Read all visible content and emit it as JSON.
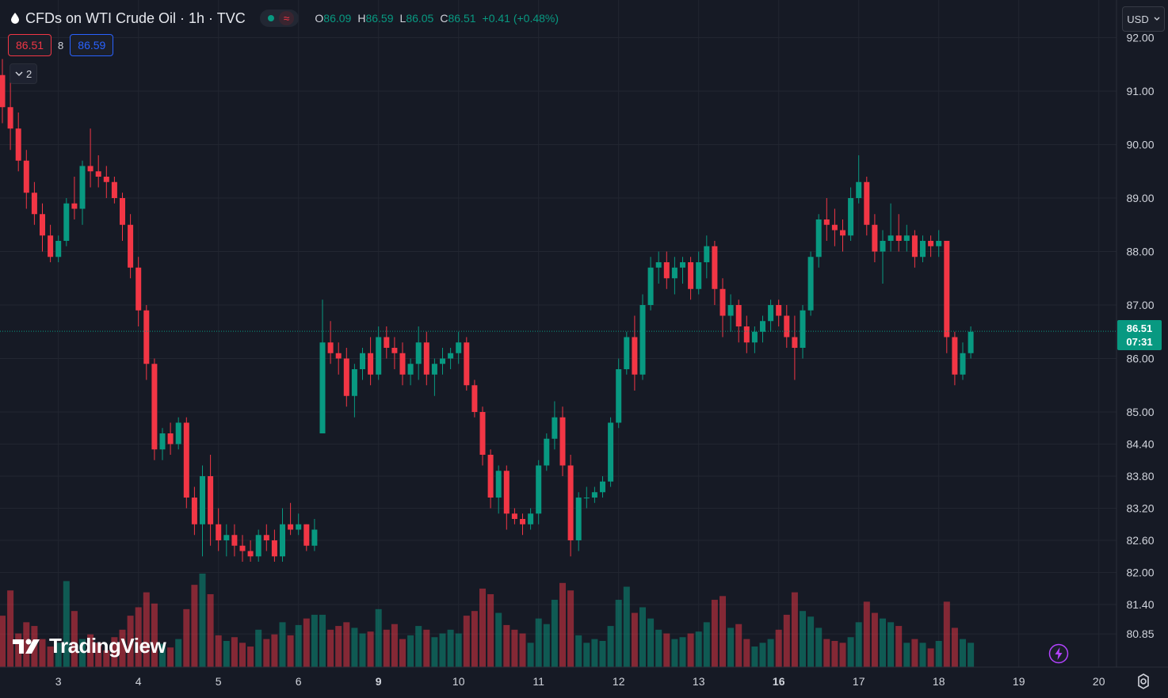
{
  "header": {
    "title": "CFDs on WTI Crude Oil · 1h · TVC",
    "ohlc": {
      "o_label": "O",
      "o": "86.09",
      "h_label": "H",
      "h": "86.59",
      "l_label": "L",
      "l": "86.05",
      "c_label": "C",
      "c": "86.51",
      "change": "+0.41 (+0.48%)"
    },
    "status_symbol": "≈"
  },
  "quote": {
    "sell": "86.51",
    "spread": "8",
    "buy": "86.59"
  },
  "collapse": {
    "count": "2"
  },
  "currency": "USD",
  "last_price": {
    "price": "86.51",
    "countdown": "07:31"
  },
  "watermark": "TradingView",
  "colors": {
    "bg": "#161a25",
    "up": "#089981",
    "down": "#f23645",
    "grid": "#222631",
    "text": "#d1d4dc"
  },
  "icons": [
    "drop-icon",
    "chevron-down-icon",
    "bolt-icon",
    "gear-icon",
    "tradingview-logo-icon"
  ],
  "chart_data": {
    "type": "candlestick",
    "instrument": "CFDs on WTI Crude Oil",
    "interval": "1h",
    "y_ticks": [
      "92.00",
      "91.00",
      "90.00",
      "89.00",
      "88.00",
      "87.00",
      "86.00",
      "85.00",
      "84.40",
      "83.80",
      "83.20",
      "82.60",
      "82.00",
      "81.40",
      "80.85"
    ],
    "x_ticks": [
      "3",
      "4",
      "5",
      "6",
      "9",
      "10",
      "11",
      "12",
      "13",
      "16",
      "17",
      "18",
      "19",
      "20"
    ],
    "x_tick_index": [
      7,
      17,
      27,
      37,
      47,
      57,
      67,
      77,
      87,
      97,
      107,
      117,
      127,
      137
    ],
    "ohlc": [
      [
        91.3,
        91.6,
        90.4,
        90.7
      ],
      [
        90.7,
        91.2,
        89.9,
        90.3
      ],
      [
        90.3,
        90.6,
        89.5,
        89.7
      ],
      [
        89.7,
        89.9,
        88.8,
        89.1
      ],
      [
        89.1,
        89.3,
        88.5,
        88.7
      ],
      [
        88.7,
        88.9,
        88.0,
        88.3
      ],
      [
        88.3,
        88.5,
        87.8,
        87.9
      ],
      [
        87.9,
        88.3,
        87.8,
        88.2
      ],
      [
        88.2,
        89.0,
        88.1,
        88.9
      ],
      [
        88.9,
        89.4,
        88.6,
        88.8
      ],
      [
        88.8,
        89.7,
        88.5,
        89.6
      ],
      [
        89.6,
        90.3,
        89.2,
        89.5
      ],
      [
        89.5,
        89.8,
        89.2,
        89.4
      ],
      [
        89.4,
        89.6,
        89.0,
        89.3
      ],
      [
        89.3,
        89.4,
        88.9,
        89.0
      ],
      [
        89.0,
        89.1,
        88.2,
        88.5
      ],
      [
        88.5,
        88.7,
        87.5,
        87.7
      ],
      [
        87.7,
        87.9,
        86.6,
        86.9
      ],
      [
        86.9,
        87.0,
        85.6,
        85.9
      ],
      [
        85.9,
        86.0,
        84.1,
        84.3
      ],
      [
        84.3,
        84.7,
        84.1,
        84.6
      ],
      [
        84.6,
        84.8,
        84.2,
        84.4
      ],
      [
        84.4,
        84.9,
        84.3,
        84.8
      ],
      [
        84.8,
        84.9,
        83.2,
        83.4
      ],
      [
        83.4,
        83.6,
        82.7,
        82.9
      ],
      [
        82.9,
        84.0,
        82.3,
        83.8
      ],
      [
        83.8,
        84.2,
        82.5,
        82.9
      ],
      [
        82.9,
        83.2,
        82.4,
        82.6
      ],
      [
        82.6,
        82.9,
        82.3,
        82.7
      ],
      [
        82.7,
        82.9,
        82.3,
        82.5
      ],
      [
        82.5,
        82.7,
        82.2,
        82.4
      ],
      [
        82.4,
        82.6,
        82.2,
        82.3
      ],
      [
        82.3,
        82.8,
        82.2,
        82.7
      ],
      [
        82.7,
        82.9,
        82.4,
        82.6
      ],
      [
        82.6,
        82.8,
        82.2,
        82.3
      ],
      [
        82.3,
        83.2,
        82.2,
        82.9
      ],
      [
        82.9,
        83.3,
        82.7,
        82.8
      ],
      [
        82.8,
        83.1,
        82.7,
        82.9
      ],
      [
        82.9,
        82.9,
        82.4,
        82.5
      ],
      [
        82.5,
        83.0,
        82.4,
        82.8
      ],
      [
        84.6,
        87.1,
        84.6,
        86.3
      ],
      [
        86.3,
        86.7,
        85.9,
        86.1
      ],
      [
        86.1,
        86.3,
        85.7,
        86.0
      ],
      [
        86.0,
        86.2,
        85.1,
        85.3
      ],
      [
        85.3,
        85.9,
        84.9,
        85.8
      ],
      [
        85.8,
        86.2,
        85.6,
        86.1
      ],
      [
        86.1,
        86.4,
        85.5,
        85.7
      ],
      [
        85.7,
        86.6,
        85.6,
        86.4
      ],
      [
        86.4,
        86.6,
        86.0,
        86.2
      ],
      [
        86.2,
        86.4,
        85.8,
        86.1
      ],
      [
        86.1,
        86.3,
        85.5,
        85.7
      ],
      [
        85.7,
        86.0,
        85.5,
        85.9
      ],
      [
        85.9,
        86.6,
        85.6,
        86.3
      ],
      [
        86.3,
        86.5,
        85.5,
        85.7
      ],
      [
        85.7,
        86.0,
        85.3,
        85.9
      ],
      [
        85.9,
        86.2,
        85.7,
        86.0
      ],
      [
        86.0,
        86.2,
        85.8,
        86.1
      ],
      [
        86.1,
        86.5,
        85.9,
        86.3
      ],
      [
        86.3,
        86.4,
        85.4,
        85.5
      ],
      [
        85.5,
        85.6,
        84.9,
        85.0
      ],
      [
        85.0,
        85.1,
        84.0,
        84.2
      ],
      [
        84.2,
        84.3,
        83.2,
        83.4
      ],
      [
        83.4,
        84.0,
        83.1,
        83.9
      ],
      [
        83.9,
        84.0,
        82.8,
        83.1
      ],
      [
        83.1,
        83.2,
        82.9,
        83.0
      ],
      [
        83.0,
        83.1,
        82.7,
        82.9
      ],
      [
        82.9,
        83.2,
        82.8,
        83.1
      ],
      [
        83.1,
        84.1,
        82.9,
        84.0
      ],
      [
        84.0,
        84.6,
        83.9,
        84.5
      ],
      [
        84.5,
        85.2,
        84.3,
        84.9
      ],
      [
        84.9,
        85.1,
        83.8,
        84.0
      ],
      [
        84.0,
        84.2,
        82.3,
        82.6
      ],
      [
        82.6,
        83.5,
        82.4,
        83.4
      ],
      [
        83.4,
        83.6,
        83.2,
        83.4
      ],
      [
        83.4,
        83.6,
        83.3,
        83.5
      ],
      [
        83.5,
        83.8,
        83.4,
        83.7
      ],
      [
        83.7,
        84.9,
        83.6,
        84.8
      ],
      [
        84.8,
        86.0,
        84.7,
        85.8
      ],
      [
        85.8,
        86.5,
        85.7,
        86.4
      ],
      [
        86.4,
        86.8,
        85.4,
        85.7
      ],
      [
        85.7,
        87.2,
        85.6,
        87.0
      ],
      [
        87.0,
        87.9,
        86.9,
        87.7
      ],
      [
        87.7,
        88.0,
        87.4,
        87.8
      ],
      [
        87.8,
        88.0,
        87.3,
        87.5
      ],
      [
        87.5,
        87.9,
        87.2,
        87.7
      ],
      [
        87.7,
        87.9,
        87.4,
        87.8
      ],
      [
        87.8,
        87.9,
        87.1,
        87.3
      ],
      [
        87.3,
        88.0,
        87.2,
        87.8
      ],
      [
        87.8,
        88.3,
        87.5,
        88.1
      ],
      [
        88.1,
        88.2,
        87.0,
        87.3
      ],
      [
        87.3,
        87.5,
        86.4,
        86.8
      ],
      [
        86.8,
        87.2,
        86.5,
        87.0
      ],
      [
        87.0,
        87.1,
        86.3,
        86.6
      ],
      [
        86.6,
        86.8,
        86.1,
        86.3
      ],
      [
        86.3,
        86.6,
        86.1,
        86.5
      ],
      [
        86.5,
        86.8,
        86.3,
        86.7
      ],
      [
        86.7,
        87.1,
        86.5,
        87.0
      ],
      [
        87.0,
        87.1,
        86.6,
        86.8
      ],
      [
        86.8,
        87.0,
        86.2,
        86.4
      ],
      [
        86.4,
        86.8,
        85.6,
        86.2
      ],
      [
        86.2,
        87.0,
        86.0,
        86.9
      ],
      [
        86.9,
        88.0,
        86.8,
        87.9
      ],
      [
        87.9,
        88.7,
        87.7,
        88.6
      ],
      [
        88.6,
        89.0,
        88.2,
        88.5
      ],
      [
        88.5,
        88.8,
        88.1,
        88.4
      ],
      [
        88.4,
        88.6,
        88.0,
        88.3
      ],
      [
        88.3,
        89.2,
        88.2,
        89.0
      ],
      [
        89.0,
        89.8,
        88.9,
        89.3
      ],
      [
        89.3,
        89.4,
        88.3,
        88.5
      ],
      [
        88.5,
        88.7,
        87.8,
        88.0
      ],
      [
        88.0,
        88.4,
        87.4,
        88.2
      ],
      [
        88.2,
        88.9,
        88.0,
        88.3
      ],
      [
        88.3,
        88.7,
        88.0,
        88.2
      ],
      [
        88.2,
        88.5,
        88.0,
        88.3
      ],
      [
        88.3,
        88.4,
        87.7,
        87.9
      ],
      [
        87.9,
        88.3,
        87.8,
        88.2
      ],
      [
        88.2,
        88.3,
        87.9,
        88.1
      ],
      [
        88.1,
        88.4,
        87.9,
        88.2
      ],
      [
        88.2,
        88.2,
        86.1,
        86.4
      ],
      [
        86.4,
        86.5,
        85.5,
        85.7
      ],
      [
        85.7,
        86.3,
        85.6,
        86.1
      ],
      [
        86.1,
        86.6,
        86.0,
        86.5
      ]
    ],
    "volume": [
      0.55,
      0.82,
      0.36,
      0.48,
      0.44,
      0.3,
      0.22,
      0.26,
      0.92,
      0.6,
      0.3,
      0.35,
      0.26,
      0.18,
      0.32,
      0.4,
      0.55,
      0.64,
      0.8,
      0.68,
      0.25,
      0.21,
      0.3,
      0.62,
      0.88,
      1.0,
      0.78,
      0.34,
      0.28,
      0.32,
      0.26,
      0.22,
      0.4,
      0.3,
      0.35,
      0.48,
      0.34,
      0.45,
      0.52,
      0.56,
      0.56,
      0.4,
      0.44,
      0.48,
      0.42,
      0.36,
      0.38,
      0.62,
      0.4,
      0.46,
      0.3,
      0.34,
      0.44,
      0.4,
      0.32,
      0.36,
      0.4,
      0.36,
      0.55,
      0.6,
      0.84,
      0.78,
      0.58,
      0.45,
      0.4,
      0.36,
      0.26,
      0.52,
      0.46,
      0.72,
      0.9,
      0.82,
      0.34,
      0.26,
      0.3,
      0.28,
      0.44,
      0.72,
      0.86,
      0.58,
      0.64,
      0.52,
      0.4,
      0.36,
      0.3,
      0.32,
      0.36,
      0.38,
      0.48,
      0.72,
      0.76,
      0.42,
      0.46,
      0.3,
      0.22,
      0.26,
      0.3,
      0.4,
      0.56,
      0.8,
      0.6,
      0.54,
      0.42,
      0.3,
      0.28,
      0.26,
      0.32,
      0.48,
      0.7,
      0.58,
      0.52,
      0.48,
      0.44,
      0.26,
      0.3,
      0.26,
      0.2,
      0.28,
      0.7,
      0.42,
      0.3,
      0.26
    ]
  }
}
